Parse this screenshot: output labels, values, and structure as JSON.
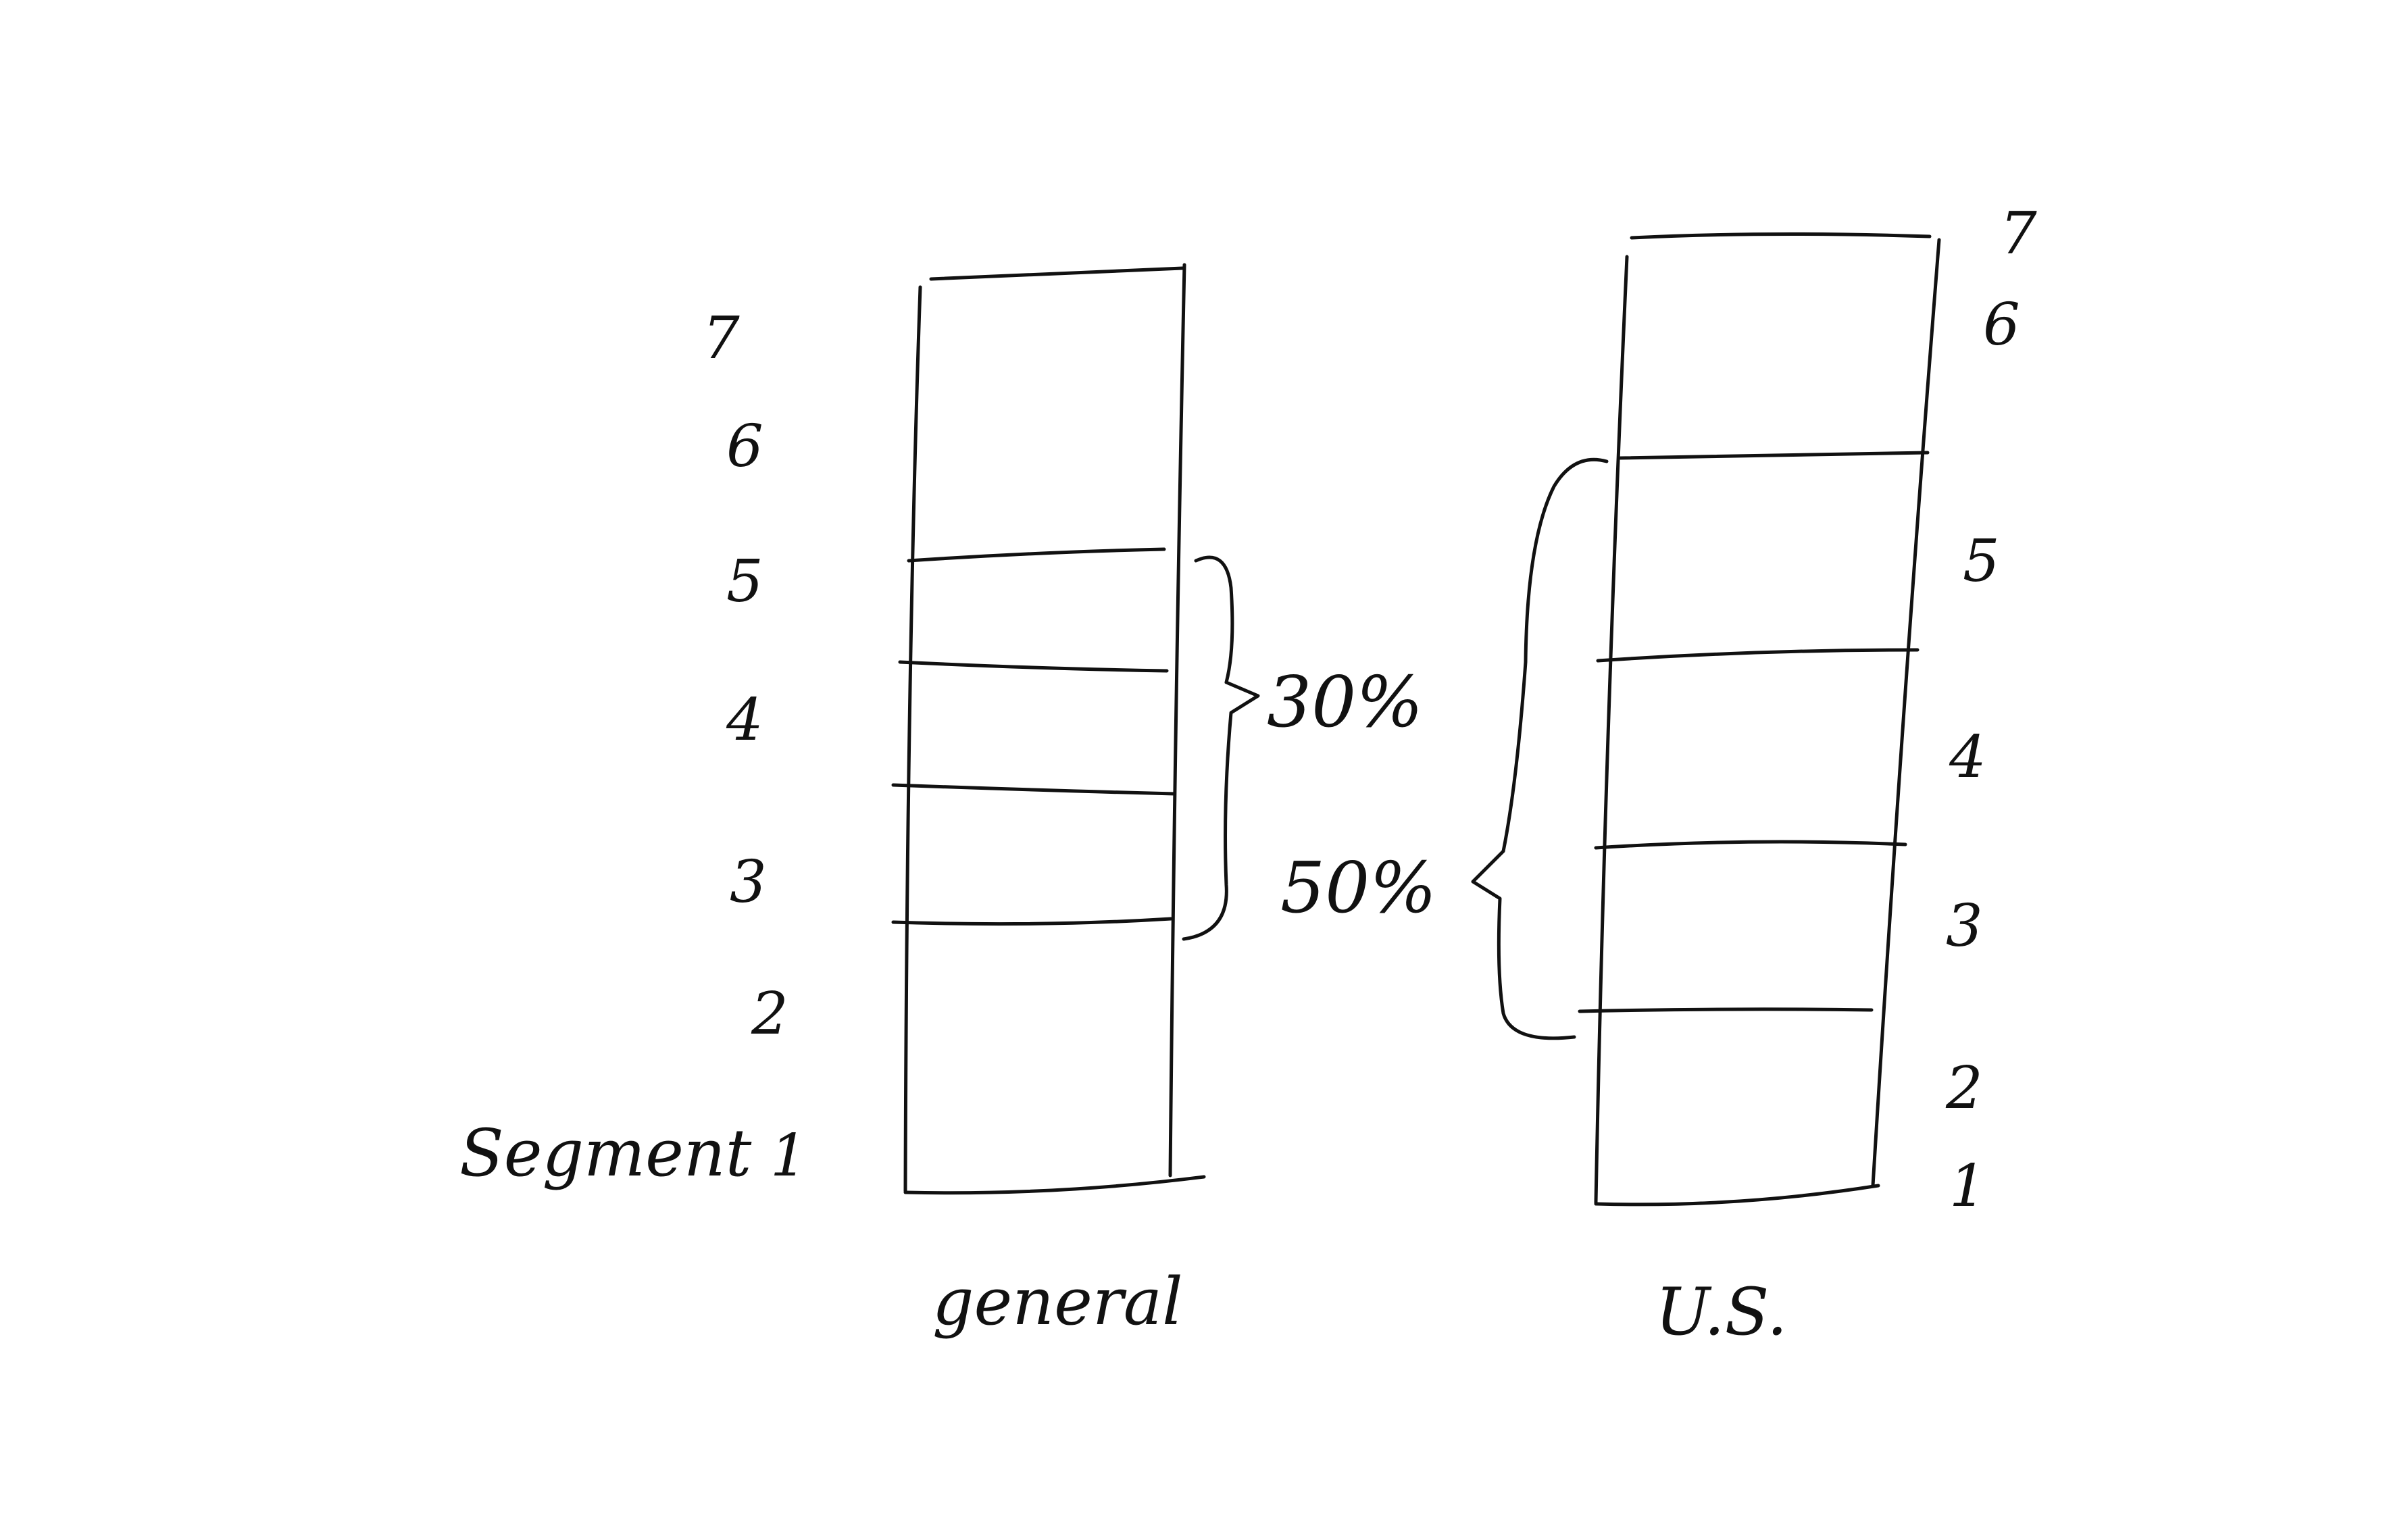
{
  "left_diagram": {
    "caption": "general",
    "axis_word": "Segment",
    "numbers": [
      "7",
      "6",
      "5",
      "4",
      "3",
      "2",
      "1"
    ],
    "bracket_label": "30%"
  },
  "right_diagram": {
    "caption": "U.S.",
    "numbers": [
      "7",
      "6",
      "5",
      "4",
      "3",
      "2",
      "1"
    ],
    "bracket_label": "50%"
  },
  "colors": {
    "ink": "#111111",
    "paper": "#ffffff"
  }
}
